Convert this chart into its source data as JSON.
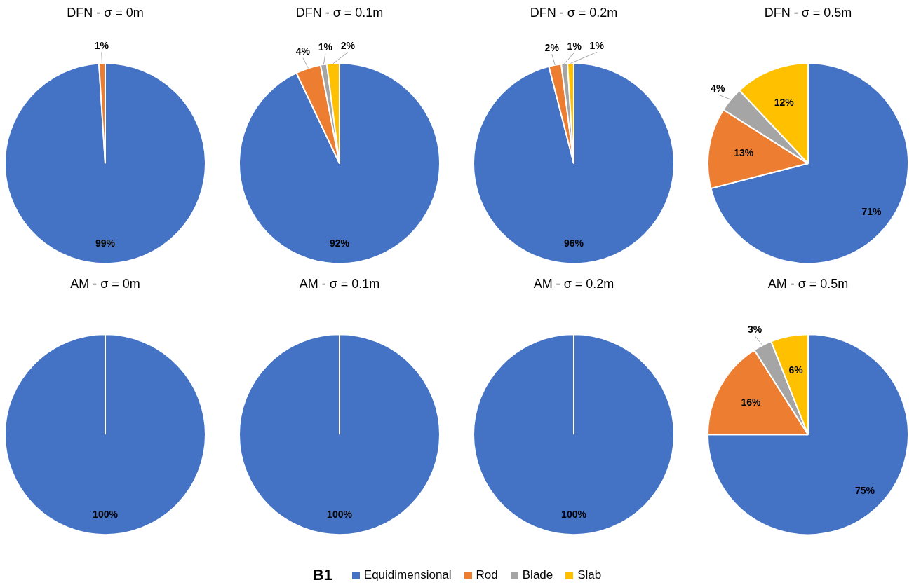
{
  "chart_data": [
    {
      "type": "pie",
      "title": "DFN - σ = 0m",
      "categories": [
        "Equidimensional",
        "Rod",
        "Blade",
        "Slab"
      ],
      "values": [
        99,
        1,
        0,
        0
      ],
      "colors": [
        "#4472c4",
        "#ed7d31",
        "#a5a5a5",
        "#ffc000"
      ],
      "value_labels": [
        "99%",
        "1%",
        null,
        null
      ],
      "legend": "bottom",
      "annotations": [
        "B1"
      ]
    },
    {
      "type": "pie",
      "title": "DFN - σ = 0.1m",
      "categories": [
        null,
        null,
        null,
        null
      ],
      "values": [
        92,
        4,
        1,
        2
      ],
      "colors": [
        "#4472c4",
        "#ed7d31",
        "#a5a5a5",
        "#ffc000"
      ],
      "value_labels": [
        "92%",
        "4%",
        "1%",
        "2%"
      ],
      "legend": false
    },
    {
      "type": "pie",
      "title": "DFN - σ = 0.2m",
      "categories": [
        null,
        null,
        null,
        null
      ],
      "values": [
        96,
        2,
        1,
        1
      ],
      "colors": [
        "#4472c4",
        "#ed7d31",
        "#a5a5a5",
        "#ffc000"
      ],
      "value_labels": [
        "96%",
        "2%",
        "1%",
        "1%"
      ],
      "legend": false
    },
    {
      "type": "pie",
      "title": "DFN - σ = 0.5m",
      "categories": [
        null,
        null,
        null,
        null
      ],
      "values": [
        71,
        13,
        4,
        12
      ],
      "colors": [
        "#4472c4",
        "#ed7d31",
        "#a5a5a5",
        "#ffc000"
      ],
      "value_labels": [
        "71%",
        "13%",
        "4%",
        "12%"
      ],
      "legend": false
    },
    {
      "type": "pie",
      "title": "AM - σ = 0m",
      "categories": [
        null,
        null,
        null,
        null
      ],
      "values": [
        100,
        0,
        0,
        0
      ],
      "colors": [
        "#4472c4",
        "#ed7d31",
        "#a5a5a5",
        "#ffc000"
      ],
      "value_labels": [
        "100%",
        null,
        null,
        null
      ],
      "legend": false
    },
    {
      "type": "pie",
      "title": "AM - σ = 0.1m",
      "categories": [
        null,
        null,
        null,
        null
      ],
      "values": [
        100,
        0,
        0,
        0
      ],
      "colors": [
        "#4472c4",
        "#ed7d31",
        "#a5a5a5",
        "#ffc000"
      ],
      "value_labels": [
        "100%",
        null,
        null,
        null
      ],
      "legend": false
    },
    {
      "type": "pie",
      "title": "AM - σ = 0.2m",
      "categories": [
        null,
        null,
        null,
        null
      ],
      "values": [
        100,
        0,
        0,
        0
      ],
      "colors": [
        "#4472c4",
        "#ed7d31",
        "#a5a5a5",
        "#ffc000"
      ],
      "value_labels": [
        "100%",
        null,
        null,
        null
      ],
      "legend": false
    },
    {
      "type": "pie",
      "title": "AM - σ = 0.5m",
      "categories": [
        null,
        null,
        null,
        null
      ],
      "values": [
        75,
        16,
        3,
        6
      ],
      "colors": [
        "#4472c4",
        "#ed7d31",
        "#a5a5a5",
        "#ffc000"
      ],
      "value_labels": [
        "75%",
        "16%",
        "3%",
        "6%"
      ],
      "legend": false
    }
  ]
}
